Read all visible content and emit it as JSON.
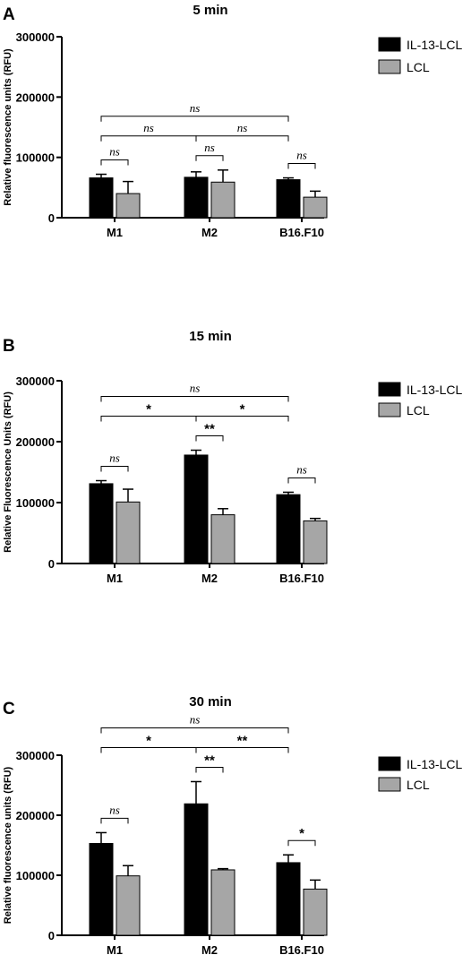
{
  "colors": {
    "series_0": "#000000",
    "series_1": "#a6a6a6",
    "axis": "#000000"
  },
  "chart_data": [
    {
      "type": "bar",
      "panel": "A",
      "title": "5 min",
      "ylabel": "Relative fluorescence units (RFU)",
      "xlabel": "",
      "categories": [
        "M1",
        "M2",
        "B16.F10"
      ],
      "ylim": [
        0,
        300000
      ],
      "yticks": [
        0,
        100000,
        200000,
        300000
      ],
      "yticklabels": [
        "0",
        "100000",
        "200000",
        "300000"
      ],
      "legend": "right",
      "series": [
        {
          "name": "IL-13-LCL",
          "values": [
            66000,
            67000,
            63000
          ],
          "errors": [
            6000,
            9000,
            3000
          ]
        },
        {
          "name": "LCL",
          "values": [
            40000,
            59000,
            34000
          ],
          "errors": [
            20000,
            20000,
            10000
          ]
        }
      ],
      "significance": [
        {
          "label": "ns",
          "from": [
            0,
            0
          ],
          "to": [
            0,
            1
          ],
          "level": 0
        },
        {
          "label": "ns",
          "from": [
            1,
            0
          ],
          "to": [
            1,
            1
          ],
          "level": 0
        },
        {
          "label": "ns",
          "from": [
            2,
            0
          ],
          "to": [
            2,
            1
          ],
          "level": 0
        },
        {
          "label": "ns",
          "from": [
            0,
            0
          ],
          "to": [
            1,
            0
          ],
          "level": 1
        },
        {
          "label": "ns",
          "from": [
            1,
            0
          ],
          "to": [
            2,
            0
          ],
          "level": 1
        },
        {
          "label": "ns",
          "from": [
            0,
            0
          ],
          "to": [
            2,
            0
          ],
          "level": 2
        }
      ]
    },
    {
      "type": "bar",
      "panel": "B",
      "title": "15 min",
      "ylabel": "Relative Fluorescence Units (RFU)",
      "xlabel": "",
      "categories": [
        "M1",
        "M2",
        "B16.F10"
      ],
      "ylim": [
        0,
        300000
      ],
      "yticks": [
        0,
        100000,
        200000,
        300000
      ],
      "yticklabels": [
        "0",
        "100000",
        "200000",
        "300000"
      ],
      "legend": "right",
      "series": [
        {
          "name": "IL-13-LCL",
          "values": [
            131000,
            178000,
            113000
          ],
          "errors": [
            5000,
            8000,
            4000
          ]
        },
        {
          "name": "LCL",
          "values": [
            101000,
            80000,
            70000
          ],
          "errors": [
            21000,
            10000,
            4000
          ]
        }
      ],
      "significance": [
        {
          "label": "ns",
          "from": [
            0,
            0
          ],
          "to": [
            0,
            1
          ],
          "level": 0
        },
        {
          "label": "**",
          "from": [
            1,
            0
          ],
          "to": [
            1,
            1
          ],
          "level": 0
        },
        {
          "label": "ns",
          "from": [
            2,
            0
          ],
          "to": [
            2,
            1
          ],
          "level": 0
        },
        {
          "label": "*",
          "from": [
            0,
            0
          ],
          "to": [
            1,
            0
          ],
          "level": 1
        },
        {
          "label": "*",
          "from": [
            1,
            0
          ],
          "to": [
            2,
            0
          ],
          "level": 1
        },
        {
          "label": "ns",
          "from": [
            0,
            0
          ],
          "to": [
            2,
            0
          ],
          "level": 2
        }
      ]
    },
    {
      "type": "bar",
      "panel": "C",
      "title": "30 min",
      "ylabel": "Relative fluorescence units (RFU)",
      "xlabel": "",
      "categories": [
        "M1",
        "M2",
        "B16.F10"
      ],
      "ylim": [
        0,
        300000
      ],
      "yticks": [
        0,
        100000,
        200000,
        300000
      ],
      "yticklabels": [
        "0",
        "100000",
        "200000",
        "300000"
      ],
      "legend": "right",
      "series": [
        {
          "name": "IL-13-LCL",
          "values": [
            153000,
            219000,
            121000
          ],
          "errors": [
            18000,
            37000,
            13000
          ]
        },
        {
          "name": "LCL",
          "values": [
            99000,
            109000,
            77000
          ],
          "errors": [
            17000,
            2000,
            15000
          ]
        }
      ],
      "significance": [
        {
          "label": "ns",
          "from": [
            0,
            0
          ],
          "to": [
            0,
            1
          ],
          "level": 0
        },
        {
          "label": "**",
          "from": [
            1,
            0
          ],
          "to": [
            1,
            1
          ],
          "level": 0
        },
        {
          "label": "*",
          "from": [
            2,
            0
          ],
          "to": [
            2,
            1
          ],
          "level": 0
        },
        {
          "label": "*",
          "from": [
            0,
            0
          ],
          "to": [
            1,
            0
          ],
          "level": 1
        },
        {
          "label": "**",
          "from": [
            1,
            0
          ],
          "to": [
            2,
            0
          ],
          "level": 1
        },
        {
          "label": "ns",
          "from": [
            0,
            0
          ],
          "to": [
            2,
            0
          ],
          "level": 2
        }
      ]
    }
  ]
}
